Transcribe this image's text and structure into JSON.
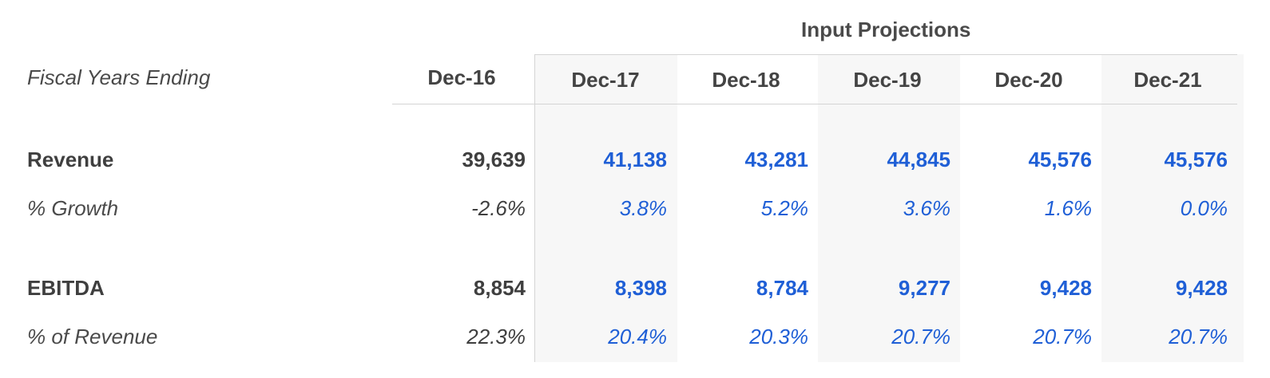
{
  "header": {
    "group_title": "Input Projections",
    "row_label": "Fiscal Years Ending",
    "columns": [
      "Dec-16",
      "Dec-17",
      "Dec-18",
      "Dec-19",
      "Dec-20",
      "Dec-21"
    ]
  },
  "rows": {
    "revenue": {
      "label": "Revenue",
      "values": [
        "39,639",
        "41,138",
        "43,281",
        "44,845",
        "45,576",
        "45,576"
      ]
    },
    "growth": {
      "label": "% Growth",
      "values": [
        "-2.6%",
        "3.8%",
        "5.2%",
        "3.6%",
        "1.6%",
        "0.0%"
      ]
    },
    "ebitda": {
      "label": "EBITDA",
      "values": [
        "8,854",
        "8,398",
        "8,784",
        "9,277",
        "9,428",
        "9,428"
      ]
    },
    "ebitda_margin": {
      "label": "% of Revenue",
      "values": [
        "22.3%",
        "20.4%",
        "20.3%",
        "20.7%",
        "20.7%",
        "20.7%"
      ]
    }
  },
  "colors": {
    "projection_value": "#1f5fd6",
    "historical_value": "#3f3f3f",
    "band": "#f7f7f7",
    "rule": "#d4d4d4"
  }
}
